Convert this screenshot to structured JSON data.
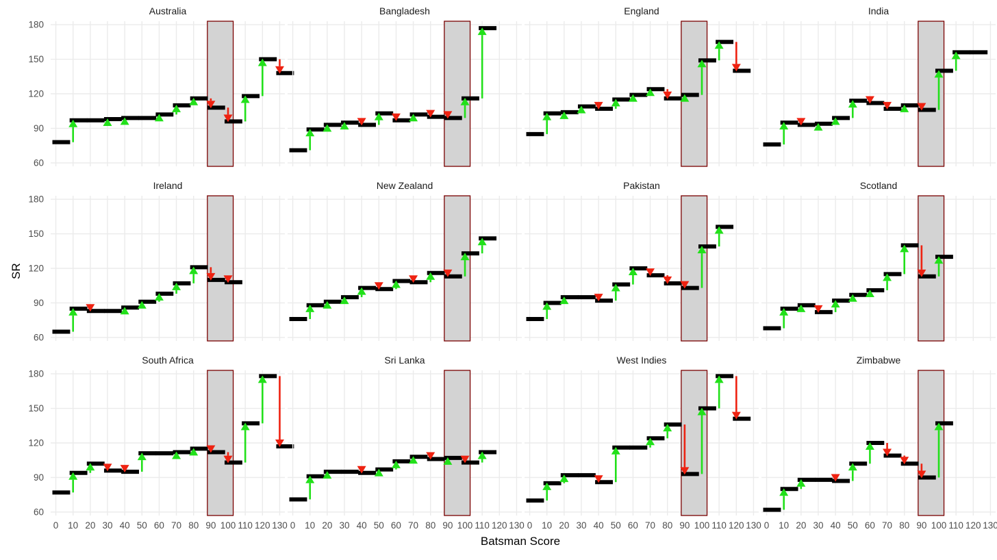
{
  "chart_data": {
    "type": "step",
    "xlabel": "Batsman Score",
    "ylabel": "SR",
    "xlim": [
      -3,
      133
    ],
    "ylim": [
      57,
      183
    ],
    "x_ticks": [
      0,
      10,
      20,
      30,
      40,
      50,
      60,
      70,
      80,
      90,
      100,
      110,
      120,
      130
    ],
    "y_ticks": [
      60,
      90,
      120,
      150,
      180
    ],
    "highlight_range": [
      90,
      100
    ],
    "colors": {
      "step": "#000000",
      "increase": "#22e01a",
      "decrease": "#ee2211",
      "highlight_fill": "#d3d3d3",
      "highlight_border": "#7a0000",
      "grid": "#ebebeb"
    },
    "panels": [
      {
        "name": "Australia",
        "values": [
          78,
          97,
          97,
          98,
          99,
          99,
          102,
          110,
          116,
          108,
          96,
          118,
          150,
          138
        ]
      },
      {
        "name": "Bangladesh",
        "values": [
          71,
          89,
          93,
          95,
          93,
          103,
          97,
          102,
          100,
          99,
          116,
          177
        ]
      },
      {
        "name": "England",
        "values": [
          85,
          103,
          104,
          109,
          107,
          115,
          119,
          124,
          116,
          119,
          149,
          165,
          140
        ]
      },
      {
        "name": "India",
        "values": [
          76,
          95,
          93,
          94,
          99,
          114,
          112,
          107,
          110,
          106,
          140,
          156,
          156
        ]
      },
      {
        "name": "Ireland",
        "values": [
          65,
          85,
          83,
          83,
          86,
          91,
          98,
          107,
          121,
          110,
          108
        ]
      },
      {
        "name": "New Zealand",
        "values": [
          76,
          88,
          91,
          95,
          103,
          102,
          109,
          108,
          116,
          113,
          133,
          146
        ]
      },
      {
        "name": "Pakistan",
        "values": [
          76,
          90,
          95,
          95,
          92,
          106,
          120,
          114,
          107,
          103,
          139,
          156
        ]
      },
      {
        "name": "Scotland",
        "values": [
          68,
          85,
          88,
          82,
          92,
          97,
          101,
          115,
          140,
          113,
          130
        ]
      },
      {
        "name": "South Africa",
        "values": [
          77,
          94,
          102,
          96,
          95,
          111,
          111,
          112,
          115,
          112,
          103,
          137,
          178,
          117
        ]
      },
      {
        "name": "Sri Lanka",
        "values": [
          71,
          91,
          95,
          95,
          94,
          97,
          104,
          108,
          106,
          107,
          103,
          112
        ]
      },
      {
        "name": "West Indies",
        "values": [
          70,
          85,
          92,
          92,
          86,
          116,
          116,
          124,
          136,
          93,
          150,
          178,
          141
        ]
      },
      {
        "name": "Zimbabwe",
        "values": [
          62,
          80,
          88,
          88,
          87,
          102,
          120,
          109,
          102,
          90,
          137
        ]
      }
    ]
  }
}
